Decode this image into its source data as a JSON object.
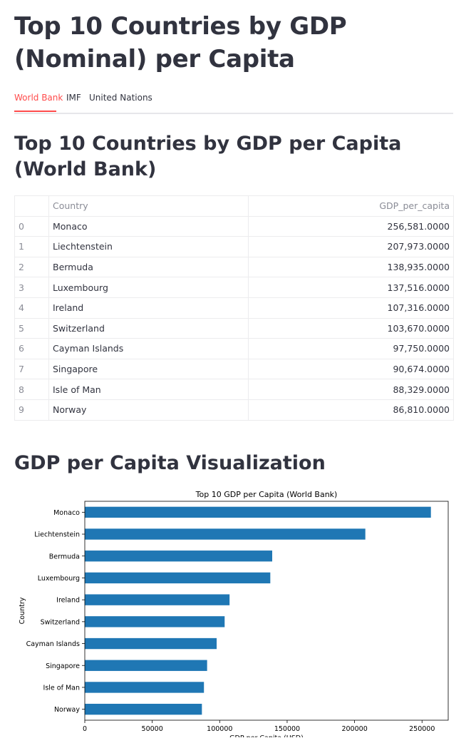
{
  "page_title": "Top 10 Countries by GDP (Nominal) per Capita",
  "tabs": [
    {
      "label": "World Bank",
      "active": true
    },
    {
      "label": "IMF",
      "active": false
    },
    {
      "label": "United Nations",
      "active": false
    }
  ],
  "section_title": "Top 10 Countries by GDP per Capita (World Bank)",
  "table": {
    "columns": [
      "",
      "Country",
      "GDP_per_capita"
    ],
    "rows": [
      {
        "index": "0",
        "country": "Monaco",
        "gdp": "256,581.0000"
      },
      {
        "index": "1",
        "country": "Liechtenstein",
        "gdp": "207,973.0000"
      },
      {
        "index": "2",
        "country": "Bermuda",
        "gdp": "138,935.0000"
      },
      {
        "index": "3",
        "country": "Luxembourg",
        "gdp": "137,516.0000"
      },
      {
        "index": "4",
        "country": "Ireland",
        "gdp": "107,316.0000"
      },
      {
        "index": "5",
        "country": "Switzerland",
        "gdp": "103,670.0000"
      },
      {
        "index": "6",
        "country": "Cayman Islands",
        "gdp": "97,750.0000"
      },
      {
        "index": "7",
        "country": "Singapore",
        "gdp": "90,674.0000"
      },
      {
        "index": "8",
        "country": "Isle of Man",
        "gdp": "88,329.0000"
      },
      {
        "index": "9",
        "country": "Norway",
        "gdp": "86,810.0000"
      }
    ]
  },
  "viz_title": "GDP per Capita Visualization",
  "colors": {
    "accent": "#ff4b4b",
    "bar": "#1f77b4"
  },
  "chart_data": {
    "type": "bar",
    "orientation": "horizontal",
    "title": "Top 10 GDP per Capita (World Bank)",
    "xlabel": "GDP per Capita (USD)",
    "ylabel": "Country",
    "categories": [
      "Monaco",
      "Liechtenstein",
      "Bermuda",
      "Luxembourg",
      "Ireland",
      "Switzerland",
      "Cayman Islands",
      "Singapore",
      "Isle of Man",
      "Norway"
    ],
    "values": [
      256581,
      207973,
      138935,
      137516,
      107316,
      103670,
      97750,
      90674,
      88329,
      86810
    ],
    "xlim": [
      0,
      269410
    ],
    "xticks": [
      0,
      50000,
      100000,
      150000,
      200000,
      250000
    ],
    "grid": false
  }
}
